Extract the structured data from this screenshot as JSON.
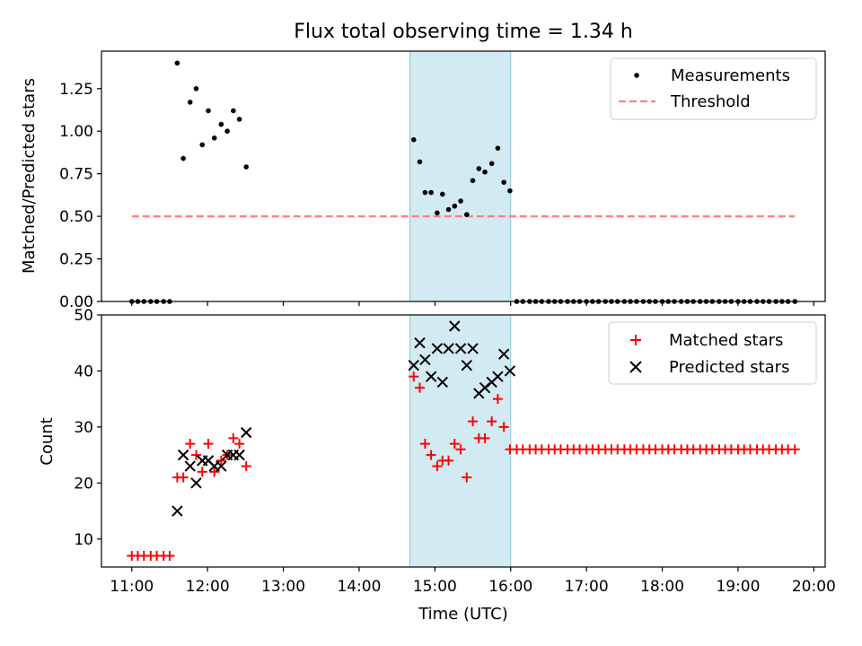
{
  "chart_data": [
    {
      "type": "scatter",
      "title": "Flux total observing time = 1.34 h",
      "xlabel": "",
      "ylabel": "Matched/Predicted stars",
      "x_unit": "hours (UTC)",
      "xlim": [
        10.6,
        20.15
      ],
      "ylim": [
        0,
        1.47
      ],
      "yticks": [
        "0.00",
        "0.25",
        "0.50",
        "0.75",
        "1.00",
        "1.25"
      ],
      "shaded_interval": {
        "x": [
          14.67,
          16.0
        ],
        "color": "#add8e6"
      },
      "legend": {
        "position": "top-right",
        "entries": [
          "Measurements",
          "Threshold"
        ]
      },
      "series": [
        {
          "name": "Measurements",
          "marker": "dot",
          "color": "#000000",
          "points": [
            [
              11.0,
              0
            ],
            [
              11.08,
              0
            ],
            [
              11.16,
              0
            ],
            [
              11.25,
              0
            ],
            [
              11.33,
              0
            ],
            [
              11.42,
              0
            ],
            [
              11.5,
              0
            ],
            [
              11.6,
              1.4
            ],
            [
              11.68,
              0.84
            ],
            [
              11.77,
              1.17
            ],
            [
              11.85,
              1.25
            ],
            [
              11.93,
              0.92
            ],
            [
              12.01,
              1.12
            ],
            [
              12.09,
              0.96
            ],
            [
              12.18,
              1.04
            ],
            [
              12.26,
              1.0
            ],
            [
              12.34,
              1.12
            ],
            [
              12.42,
              1.07
            ],
            [
              12.51,
              0.79
            ],
            [
              14.72,
              0.95
            ],
            [
              14.8,
              0.82
            ],
            [
              14.87,
              0.64
            ],
            [
              14.95,
              0.64
            ],
            [
              15.03,
              0.52
            ],
            [
              15.1,
              0.63
            ],
            [
              15.18,
              0.54
            ],
            [
              15.26,
              0.56
            ],
            [
              15.34,
              0.59
            ],
            [
              15.42,
              0.51
            ],
            [
              15.5,
              0.71
            ],
            [
              15.58,
              0.78
            ],
            [
              15.66,
              0.76
            ],
            [
              15.75,
              0.81
            ],
            [
              15.83,
              0.9
            ],
            [
              15.91,
              0.7
            ],
            [
              15.99,
              0.65
            ],
            [
              16.08,
              0
            ],
            [
              16.16,
              0
            ],
            [
              16.25,
              0
            ],
            [
              16.33,
              0
            ],
            [
              16.41,
              0
            ],
            [
              16.5,
              0
            ],
            [
              16.58,
              0
            ],
            [
              16.66,
              0
            ],
            [
              16.75,
              0
            ],
            [
              16.83,
              0
            ],
            [
              16.91,
              0
            ],
            [
              17.0,
              0
            ],
            [
              17.08,
              0
            ],
            [
              17.16,
              0
            ],
            [
              17.25,
              0
            ],
            [
              17.33,
              0
            ],
            [
              17.41,
              0
            ],
            [
              17.5,
              0
            ],
            [
              17.58,
              0
            ],
            [
              17.66,
              0
            ],
            [
              17.75,
              0
            ],
            [
              17.83,
              0
            ],
            [
              17.91,
              0
            ],
            [
              18.0,
              0
            ],
            [
              18.08,
              0
            ],
            [
              18.16,
              0
            ],
            [
              18.25,
              0
            ],
            [
              18.33,
              0
            ],
            [
              18.41,
              0
            ],
            [
              18.5,
              0
            ],
            [
              18.58,
              0
            ],
            [
              18.66,
              0
            ],
            [
              18.75,
              0
            ],
            [
              18.83,
              0
            ],
            [
              18.91,
              0
            ],
            [
              19.0,
              0
            ],
            [
              19.08,
              0
            ],
            [
              19.16,
              0
            ],
            [
              19.25,
              0
            ],
            [
              19.33,
              0
            ],
            [
              19.41,
              0
            ],
            [
              19.5,
              0
            ],
            [
              19.58,
              0
            ],
            [
              19.66,
              0
            ],
            [
              19.75,
              0
            ]
          ]
        },
        {
          "name": "Threshold",
          "marker": "dashed-line",
          "color": "#ff7f7f",
          "points": [
            [
              11.0,
              0.5
            ],
            [
              19.75,
              0.5
            ]
          ]
        }
      ]
    },
    {
      "type": "scatter",
      "title": "",
      "xlabel": "Time (UTC)",
      "ylabel": "Count",
      "x_unit": "hours (UTC)",
      "xlim": [
        10.6,
        20.15
      ],
      "ylim": [
        5,
        50
      ],
      "yticks": [
        "10",
        "20",
        "30",
        "40",
        "50"
      ],
      "xticks": [
        "11:00",
        "12:00",
        "13:00",
        "14:00",
        "15:00",
        "16:00",
        "17:00",
        "18:00",
        "19:00",
        "20:00"
      ],
      "shaded_interval": {
        "x": [
          14.67,
          16.0
        ],
        "color": "#add8e6"
      },
      "legend": {
        "position": "top-right",
        "entries": [
          "Matched stars",
          "Predicted stars"
        ]
      },
      "series": [
        {
          "name": "Matched stars",
          "marker": "plus",
          "color": "#ff0000",
          "points": [
            [
              11.0,
              7
            ],
            [
              11.08,
              7
            ],
            [
              11.16,
              7
            ],
            [
              11.25,
              7
            ],
            [
              11.33,
              7
            ],
            [
              11.42,
              7
            ],
            [
              11.5,
              7
            ],
            [
              11.6,
              21
            ],
            [
              11.68,
              21
            ],
            [
              11.77,
              27
            ],
            [
              11.85,
              25
            ],
            [
              11.93,
              22
            ],
            [
              12.01,
              27
            ],
            [
              12.09,
              22
            ],
            [
              12.18,
              24
            ],
            [
              12.26,
              25
            ],
            [
              12.34,
              28
            ],
            [
              12.42,
              27
            ],
            [
              12.51,
              23
            ],
            [
              14.72,
              39
            ],
            [
              14.8,
              37
            ],
            [
              14.87,
              27
            ],
            [
              14.95,
              25
            ],
            [
              15.03,
              23
            ],
            [
              15.1,
              24
            ],
            [
              15.18,
              24
            ],
            [
              15.26,
              27
            ],
            [
              15.34,
              26
            ],
            [
              15.42,
              21
            ],
            [
              15.5,
              31
            ],
            [
              15.58,
              28
            ],
            [
              15.66,
              28
            ],
            [
              15.75,
              31
            ],
            [
              15.83,
              35
            ],
            [
              15.91,
              30
            ],
            [
              15.99,
              26
            ],
            [
              16.08,
              26
            ],
            [
              16.16,
              26
            ],
            [
              16.25,
              26
            ],
            [
              16.33,
              26
            ],
            [
              16.41,
              26
            ],
            [
              16.5,
              26
            ],
            [
              16.58,
              26
            ],
            [
              16.66,
              26
            ],
            [
              16.75,
              26
            ],
            [
              16.83,
              26
            ],
            [
              16.91,
              26
            ],
            [
              17.0,
              26
            ],
            [
              17.08,
              26
            ],
            [
              17.16,
              26
            ],
            [
              17.25,
              26
            ],
            [
              17.33,
              26
            ],
            [
              17.41,
              26
            ],
            [
              17.5,
              26
            ],
            [
              17.58,
              26
            ],
            [
              17.66,
              26
            ],
            [
              17.75,
              26
            ],
            [
              17.83,
              26
            ],
            [
              17.91,
              26
            ],
            [
              18.0,
              26
            ],
            [
              18.08,
              26
            ],
            [
              18.16,
              26
            ],
            [
              18.25,
              26
            ],
            [
              18.33,
              26
            ],
            [
              18.41,
              26
            ],
            [
              18.5,
              26
            ],
            [
              18.58,
              26
            ],
            [
              18.66,
              26
            ],
            [
              18.75,
              26
            ],
            [
              18.83,
              26
            ],
            [
              18.91,
              26
            ],
            [
              19.0,
              26
            ],
            [
              19.08,
              26
            ],
            [
              19.16,
              26
            ],
            [
              19.25,
              26
            ],
            [
              19.33,
              26
            ],
            [
              19.41,
              26
            ],
            [
              19.5,
              26
            ],
            [
              19.58,
              26
            ],
            [
              19.66,
              26
            ],
            [
              19.75,
              26
            ]
          ]
        },
        {
          "name": "Predicted stars",
          "marker": "x",
          "color": "#000000",
          "points": [
            [
              11.6,
              15
            ],
            [
              11.68,
              25
            ],
            [
              11.77,
              23
            ],
            [
              11.85,
              20
            ],
            [
              11.93,
              24
            ],
            [
              12.01,
              24
            ],
            [
              12.09,
              23
            ],
            [
              12.18,
              23
            ],
            [
              12.26,
              25
            ],
            [
              12.34,
              25
            ],
            [
              12.42,
              25
            ],
            [
              12.51,
              29
            ],
            [
              14.72,
              41
            ],
            [
              14.8,
              45
            ],
            [
              14.87,
              42
            ],
            [
              14.95,
              39
            ],
            [
              15.03,
              44
            ],
            [
              15.1,
              38
            ],
            [
              15.18,
              44
            ],
            [
              15.26,
              48
            ],
            [
              15.34,
              44
            ],
            [
              15.42,
              41
            ],
            [
              15.5,
              44
            ],
            [
              15.58,
              36
            ],
            [
              15.66,
              37
            ],
            [
              15.75,
              38
            ],
            [
              15.83,
              39
            ],
            [
              15.91,
              43
            ],
            [
              15.99,
              40
            ]
          ]
        }
      ]
    }
  ]
}
